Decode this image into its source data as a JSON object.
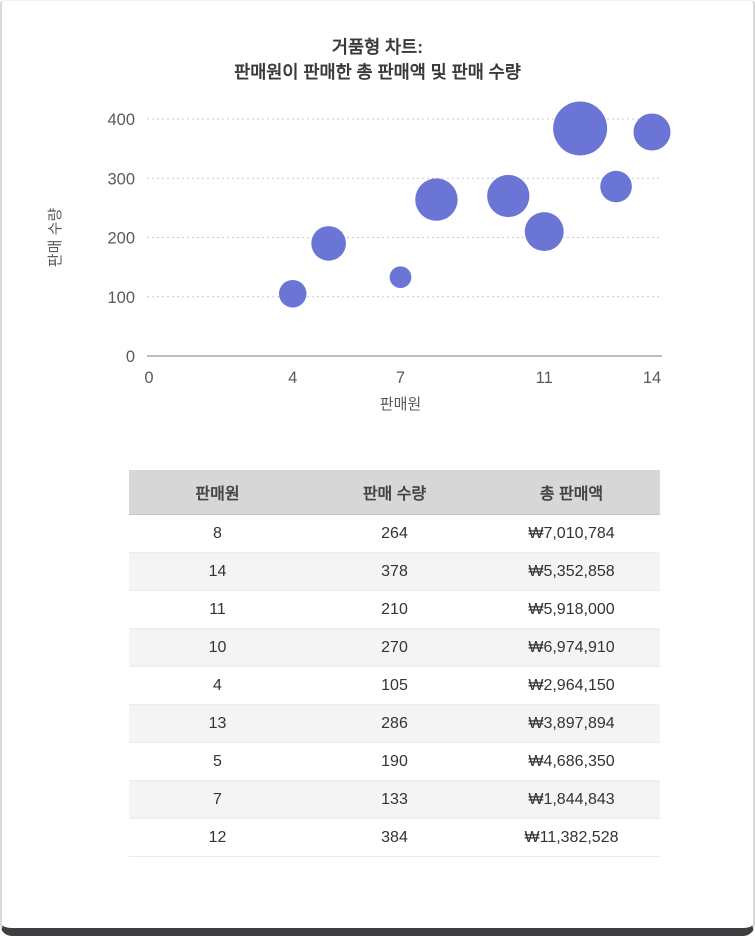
{
  "chart": {
    "title_line1": "거품형 차트:",
    "title_line2": "판매원이 판매한 총 판매액 및 판매 수량",
    "xlabel": "판매원",
    "ylabel": "판매 수량",
    "x_ticks": [
      0,
      4,
      7,
      11,
      14
    ],
    "y_ticks": [
      0,
      100,
      200,
      300,
      400
    ],
    "bubble_color": "#6a75d6"
  },
  "chart_data": {
    "type": "scatter",
    "title": "거품형 차트: 판매원이 판매한 총 판매액 및 판매 수량",
    "xlabel": "판매원",
    "ylabel": "판매 수량",
    "xlim": [
      0,
      14
    ],
    "ylim": [
      0,
      400
    ],
    "grid": "horizontal-dotted",
    "legend": "none",
    "series_note": "bubble size = 총 판매액 (total sales, KRW)",
    "points": [
      {
        "x": 8,
        "y": 264,
        "size": 7010784
      },
      {
        "x": 14,
        "y": 378,
        "size": 5352858
      },
      {
        "x": 11,
        "y": 210,
        "size": 5918000
      },
      {
        "x": 10,
        "y": 270,
        "size": 6974910
      },
      {
        "x": 4,
        "y": 105,
        "size": 2964150
      },
      {
        "x": 13,
        "y": 286,
        "size": 3897894
      },
      {
        "x": 5,
        "y": 190,
        "size": 4686350
      },
      {
        "x": 7,
        "y": 133,
        "size": 1844843
      },
      {
        "x": 12,
        "y": 384,
        "size": 11382528
      }
    ]
  },
  "table": {
    "headers": [
      "판매원",
      "판매 수량",
      "총 판매액"
    ],
    "rows": [
      [
        "8",
        "264",
        "₩7,010,784"
      ],
      [
        "14",
        "378",
        "₩5,352,858"
      ],
      [
        "11",
        "210",
        "₩5,918,000"
      ],
      [
        "10",
        "270",
        "₩6,974,910"
      ],
      [
        "4",
        "105",
        "₩2,964,150"
      ],
      [
        "13",
        "286",
        "₩3,897,894"
      ],
      [
        "5",
        "190",
        "₩4,686,350"
      ],
      [
        "7",
        "133",
        "₩1,844,843"
      ],
      [
        "12",
        "384",
        "₩11,382,528"
      ]
    ]
  }
}
